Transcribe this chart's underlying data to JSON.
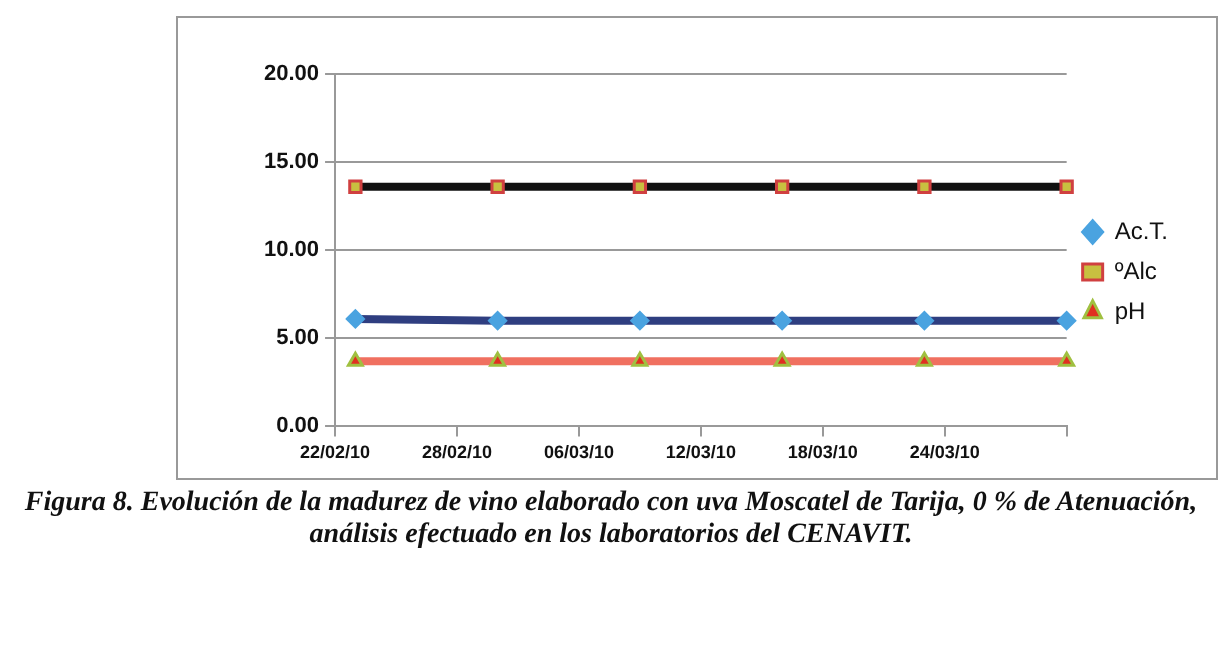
{
  "chart_data": {
    "type": "line",
    "title": "Figura 8. Evolución de la madurez de vino elaborado con uva Moscatel de Tarija, 0 % de Atenuación, análisis efectuado en los laboratorios del CENAVIT.",
    "x": [
      "--02-23",
      "--03-02",
      "--03-09",
      "--03-16",
      "--03-23",
      "--03-30"
    ],
    "series": [
      {
        "name": "Ac.T.",
        "color": "#2f3e80",
        "marker": "diamond",
        "values": [
          6.1,
          6.0,
          6.0,
          6.0,
          6.0,
          6.0
        ]
      },
      {
        "name": "ºAlc",
        "color": "#111111",
        "marker": "square",
        "values": [
          13.6,
          13.6,
          13.6,
          13.6,
          13.6,
          13.6
        ]
      },
      {
        "name": "pH",
        "color": "#f07060",
        "marker": "triangle",
        "values": [
          3.7,
          3.7,
          3.7,
          3.7,
          3.7,
          3.7
        ]
      }
    ],
    "xlim": [
      "--02-22",
      "--03-30"
    ],
    "xticks": [
      {
        "value": "--02-22",
        "label": "22/02/10"
      },
      {
        "value": "--02-28",
        "label": "28/02/10"
      },
      {
        "value": "--03-06",
        "label": "06/03/10"
      },
      {
        "value": "--03-12",
        "label": "12/03/10"
      },
      {
        "value": "--03-18",
        "label": "18/03/10"
      },
      {
        "value": "--03-24",
        "label": "24/03/10"
      },
      {
        "value": "--03-30",
        "label": null
      }
    ],
    "ylim": [
      0,
      20
    ],
    "yticks": [
      {
        "value": 0,
        "label": "0.00"
      },
      {
        "value": 5,
        "label": "5.00"
      },
      {
        "value": 10,
        "label": "10.00"
      },
      {
        "value": 15,
        "label": "15.00"
      },
      {
        "value": 20,
        "label": "20.00"
      }
    ],
    "grid": "y",
    "legend": "right"
  }
}
